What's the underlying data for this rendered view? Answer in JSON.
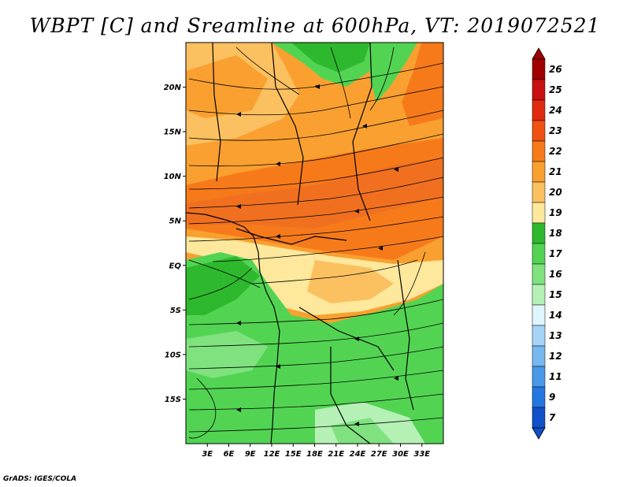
{
  "title": "WBPT [C] and Sreamline at 600hPa, VT: 2019072521",
  "footer": "GrADS: IGES/COLA",
  "map": {
    "lat_range": [
      -20,
      25
    ],
    "lon_range": [
      0,
      36
    ],
    "lat_labels": [
      {
        "value": 20,
        "label": "20N"
      },
      {
        "value": 15,
        "label": "15N"
      },
      {
        "value": 10,
        "label": "10N"
      },
      {
        "value": 5,
        "label": "5N"
      },
      {
        "value": 0,
        "label": "EQ"
      },
      {
        "value": -5,
        "label": "5S"
      },
      {
        "value": -10,
        "label": "10S"
      },
      {
        "value": -15,
        "label": "15S"
      }
    ],
    "lon_labels": [
      {
        "value": 3,
        "label": "3E"
      },
      {
        "value": 6,
        "label": "6E"
      },
      {
        "value": 9,
        "label": "9E"
      },
      {
        "value": 12,
        "label": "12E"
      },
      {
        "value": 15,
        "label": "15E"
      },
      {
        "value": 18,
        "label": "18E"
      },
      {
        "value": 21,
        "label": "21E"
      },
      {
        "value": 24,
        "label": "24E"
      },
      {
        "value": 27,
        "label": "27E"
      },
      {
        "value": 30,
        "label": "30E"
      },
      {
        "value": 33,
        "label": "33E"
      }
    ]
  },
  "colorbar": {
    "levels": [
      "26",
      "25",
      "24",
      "23",
      "22",
      "21",
      "20",
      "19",
      "18",
      "17",
      "16",
      "15",
      "14",
      "13",
      "12",
      "11",
      "9",
      "7"
    ],
    "colors": [
      "#a00000",
      "#c81010",
      "#e02a10",
      "#f05010",
      "#f77a1a",
      "#f9a030",
      "#fbc060",
      "#fde89c",
      "#2eb82e",
      "#52d452",
      "#7fe27f",
      "#b5f0b5",
      "#e0f6ff",
      "#a6d4f7",
      "#78b8f0",
      "#4a98e8",
      "#2476e0",
      "#1050c8"
    ]
  }
}
